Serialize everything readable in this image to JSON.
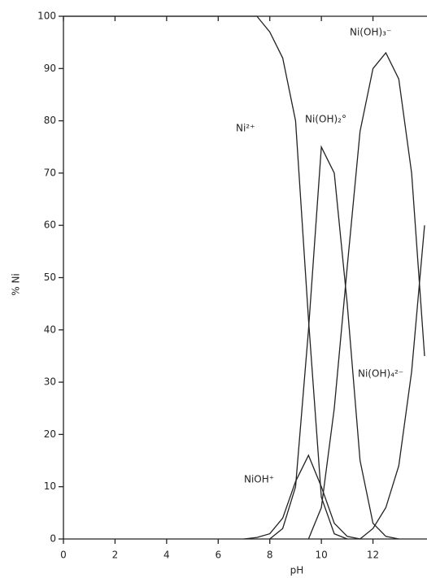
{
  "chart_data": {
    "type": "line",
    "x_label": "pH",
    "y_label": "% Ni",
    "x": [
      0,
      7,
      7.5,
      8,
      8.5,
      9,
      9.5,
      10,
      10.5,
      11,
      11.5,
      12,
      12.5,
      13,
      13.5,
      14
    ],
    "series": [
      {
        "name": "Ni²⁺",
        "color": "#222222",
        "values": [
          100,
          100,
          100,
          97,
          92,
          80,
          42,
          8,
          1,
          0,
          null,
          null,
          null,
          null,
          null,
          null
        ]
      },
      {
        "name": "NiOH⁺",
        "color": "#222222",
        "values": [
          null,
          0,
          0.3,
          1,
          4,
          11,
          16,
          10,
          3,
          0.5,
          0,
          null,
          null,
          null,
          null,
          null
        ]
      },
      {
        "name": "Ni(OH)₂°",
        "color": "#222222",
        "values": [
          null,
          null,
          null,
          0,
          2,
          10,
          40,
          75,
          70,
          45,
          15,
          3,
          0.5,
          0,
          null,
          null
        ]
      },
      {
        "name": "Ni(OH)₃⁻",
        "color": "#222222",
        "values": [
          null,
          null,
          null,
          null,
          null,
          null,
          0,
          6,
          25,
          52,
          78,
          90,
          93,
          88,
          70,
          35
        ]
      },
      {
        "name": "Ni(OH)₄²⁻",
        "color": "#222222",
        "values": [
          null,
          null,
          null,
          null,
          null,
          null,
          null,
          null,
          null,
          null,
          0,
          2,
          6,
          14,
          32,
          60
        ]
      }
    ],
    "xlim": [
      0,
      14
    ],
    "ylim": [
      0,
      100
    ],
    "xticks": [
      0,
      2,
      4,
      6,
      8,
      10,
      12
    ],
    "yticks": [
      0,
      10,
      20,
      30,
      40,
      50,
      60,
      70,
      80,
      90,
      100
    ]
  }
}
